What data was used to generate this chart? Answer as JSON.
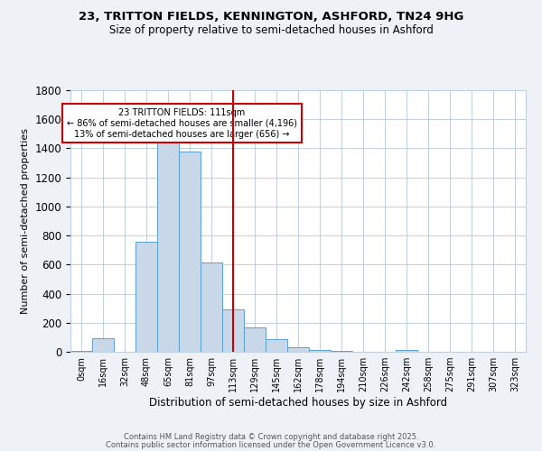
{
  "title1": "23, TRITTON FIELDS, KENNINGTON, ASHFORD, TN24 9HG",
  "title2": "Size of property relative to semi-detached houses in Ashford",
  "bar_labels": [
    "0sqm",
    "16sqm",
    "32sqm",
    "48sqm",
    "65sqm",
    "81sqm",
    "97sqm",
    "113sqm",
    "129sqm",
    "145sqm",
    "162sqm",
    "178sqm",
    "194sqm",
    "210sqm",
    "226sqm",
    "242sqm",
    "258sqm",
    "275sqm",
    "291sqm",
    "307sqm",
    "323sqm"
  ],
  "bar_values": [
    5,
    95,
    0,
    760,
    1450,
    1375,
    615,
    290,
    170,
    85,
    28,
    12,
    4,
    0,
    0,
    12,
    0,
    0,
    0,
    0,
    0
  ],
  "bar_color": "#c8d8e8",
  "bar_edge_color": "#5a9fd4",
  "vline_x": 7,
  "vline_color": "#cc0000",
  "annotation_text": "23 TRITTON FIELDS: 111sqm\n← 86% of semi-detached houses are smaller (4,196)\n13% of semi-detached houses are larger (656) →",
  "annotation_box_color": "#ffffff",
  "annotation_edge_color": "#cc0000",
  "xlabel": "Distribution of semi-detached houses by size in Ashford",
  "ylabel": "Number of semi-detached properties",
  "ylim": [
    0,
    1800
  ],
  "yticks": [
    0,
    200,
    400,
    600,
    800,
    1000,
    1200,
    1400,
    1600,
    1800
  ],
  "footer1": "Contains HM Land Registry data © Crown copyright and database right 2025.",
  "footer2": "Contains public sector information licensed under the Open Government Licence v3.0.",
  "bg_color": "#eef2f7",
  "plot_bg_color": "#ffffff",
  "grid_color": "#c0d0e0"
}
